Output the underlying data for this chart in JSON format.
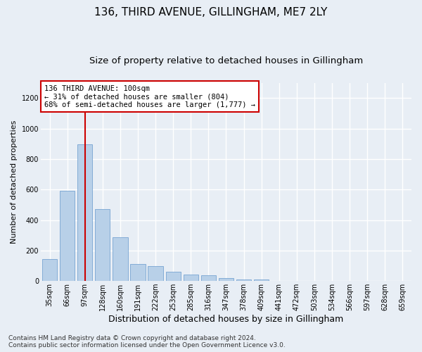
{
  "title": "136, THIRD AVENUE, GILLINGHAM, ME7 2LY",
  "subtitle": "Size of property relative to detached houses in Gillingham",
  "xlabel": "Distribution of detached houses by size in Gillingham",
  "ylabel": "Number of detached properties",
  "bar_color": "#b8d0e8",
  "bar_edge_color": "#6699cc",
  "background_color": "#e8eef5",
  "plot_bg_color": "#e8eef5",
  "grid_color": "#ffffff",
  "vline_color": "#cc0000",
  "vline_x": 2,
  "annotation_text": "136 THIRD AVENUE: 100sqm\n← 31% of detached houses are smaller (804)\n68% of semi-detached houses are larger (1,777) →",
  "annotation_box_color": "#cc0000",
  "bin_labels": [
    "35sqm",
    "66sqm",
    "97sqm",
    "128sqm",
    "160sqm",
    "191sqm",
    "222sqm",
    "253sqm",
    "285sqm",
    "316sqm",
    "347sqm",
    "378sqm",
    "409sqm",
    "441sqm",
    "472sqm",
    "503sqm",
    "534sqm",
    "566sqm",
    "597sqm",
    "628sqm",
    "659sqm"
  ],
  "bar_heights": [
    145,
    590,
    895,
    470,
    285,
    110,
    100,
    62,
    42,
    38,
    20,
    12,
    8,
    0,
    0,
    0,
    0,
    0,
    0,
    0,
    0
  ],
  "ylim": [
    0,
    1300
  ],
  "yticks": [
    0,
    200,
    400,
    600,
    800,
    1000,
    1200
  ],
  "footer_text": "Contains HM Land Registry data © Crown copyright and database right 2024.\nContains public sector information licensed under the Open Government Licence v3.0.",
  "title_fontsize": 11,
  "subtitle_fontsize": 9.5,
  "xlabel_fontsize": 9,
  "ylabel_fontsize": 8,
  "tick_fontsize": 7,
  "footer_fontsize": 6.5,
  "ann_fontsize": 7.5
}
